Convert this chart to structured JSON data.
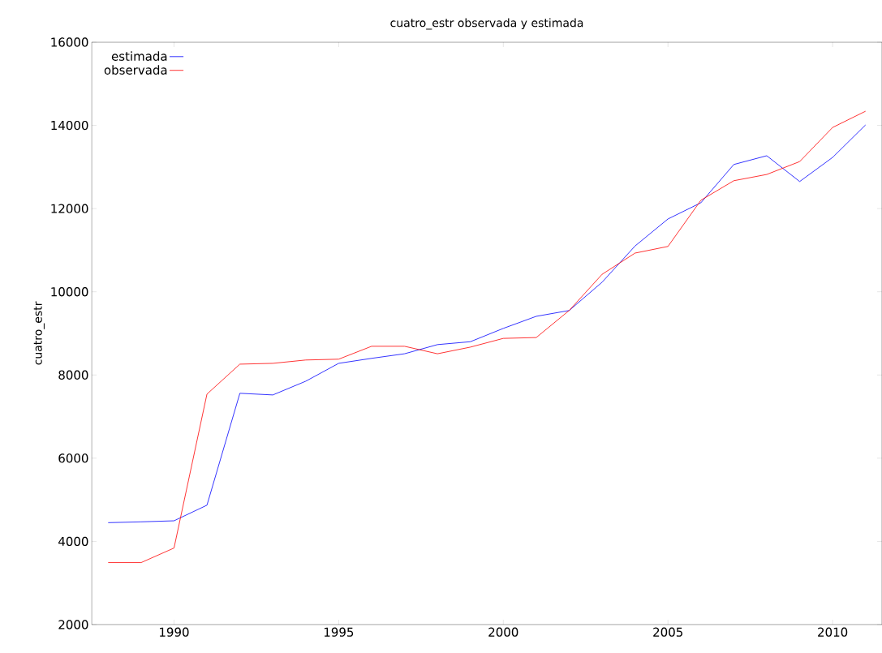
{
  "chart_data": {
    "type": "line",
    "title": "cuatro_estr observada y estimada",
    "ylabel": "cuatro_estr",
    "x": [
      1988,
      1989,
      1990,
      1991,
      1992,
      1993,
      1994,
      1995,
      1996,
      1997,
      1998,
      1999,
      2000,
      2001,
      2002,
      2003,
      2004,
      2005,
      2006,
      2007,
      2008,
      2009,
      2010,
      2011
    ],
    "series": [
      {
        "name": "estimada",
        "color": "#0000ff",
        "values": [
          4450,
          4470,
          4495,
          4870,
          7560,
          7520,
          7850,
          8280,
          8400,
          8510,
          8730,
          8800,
          9120,
          9410,
          9550,
          10230,
          11100,
          11750,
          12140,
          13060,
          13270,
          12650,
          13230,
          14010
        ]
      },
      {
        "name": "observada",
        "color": "#ff0000",
        "values": [
          3490,
          3490,
          3840,
          7540,
          8260,
          8280,
          8360,
          8380,
          8690,
          8690,
          8510,
          8670,
          8880,
          8900,
          9550,
          10420,
          10930,
          11090,
          12200,
          12670,
          12820,
          13130,
          13950,
          14340
        ]
      }
    ],
    "xlim": [
      1987.5,
      2011.5
    ],
    "ylim": [
      2000,
      16000
    ],
    "xticks": [
      1990,
      1995,
      2000,
      2005,
      2010
    ],
    "yticks": [
      2000,
      4000,
      6000,
      8000,
      10000,
      12000,
      14000,
      16000
    ],
    "legend": "top left",
    "grid": false,
    "marker": "none",
    "line_style": "solid"
  }
}
